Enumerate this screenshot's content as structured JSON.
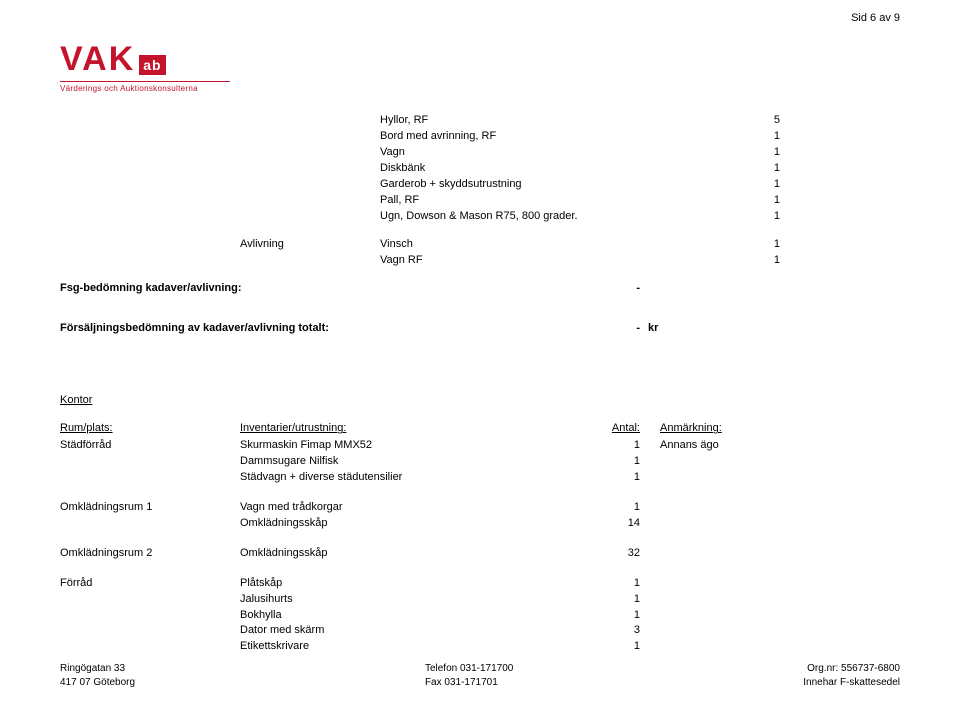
{
  "page_number": "Sid 6 av 9",
  "logo": {
    "vak": "VAK",
    "ab": "ab",
    "tagline": "Värderings och Auktionskonsulterna"
  },
  "upper_rows": [
    {
      "label": "",
      "desc": "Hyllor, RF",
      "qty": "5"
    },
    {
      "label": "",
      "desc": "Bord med avrinning, RF",
      "qty": "1"
    },
    {
      "label": "",
      "desc": "Vagn",
      "qty": "1"
    },
    {
      "label": "",
      "desc": "Diskbänk",
      "qty": "1"
    },
    {
      "label": "",
      "desc": "Garderob + skyddsutrustning",
      "qty": "1"
    },
    {
      "label": "",
      "desc": "Pall, RF",
      "qty": "1"
    },
    {
      "label": "",
      "desc": "Ugn, Dowson & Mason R75, 800 grader.",
      "qty": "1"
    },
    {
      "label": "Avlivning",
      "desc": "Vinsch",
      "qty": "1"
    },
    {
      "label": "",
      "desc": "Vagn RF",
      "qty": "1"
    }
  ],
  "fsg_line": {
    "label": "Fsg-bedömning kadaver/avlivning:",
    "qty": "-"
  },
  "sales_line": {
    "label": "Försäljningsbedömning av kadaver/avlivning totalt:",
    "qty": "-",
    "unit": "kr"
  },
  "section_title": "Kontor",
  "table_headers": {
    "room": "Rum/plats:",
    "item": "Inventarier/utrustning:",
    "qty": "Antal:",
    "note": "Anmärkning:"
  },
  "groups": [
    {
      "room": "Städförråd",
      "rows": [
        {
          "item": "Skurmaskin Fimap MMX52",
          "qty": "1",
          "note": "Annans ägo"
        },
        {
          "item": "Dammsugare Nilfisk",
          "qty": "1",
          "note": ""
        },
        {
          "item": "Städvagn + diverse städutensilier",
          "qty": "1",
          "note": ""
        }
      ]
    },
    {
      "room": "Omklädningsrum 1",
      "rows": [
        {
          "item": "Vagn med trådkorgar",
          "qty": "1",
          "note": ""
        },
        {
          "item": "Omklädningsskåp",
          "qty": "14",
          "note": ""
        }
      ]
    },
    {
      "room": "Omklädningsrum 2",
      "rows": [
        {
          "item": "Omklädningsskåp",
          "qty": "32",
          "note": ""
        }
      ]
    },
    {
      "room": "Förråd",
      "rows": [
        {
          "item": "Plåtskåp",
          "qty": "1",
          "note": ""
        },
        {
          "item": "Jalusihurts",
          "qty": "1",
          "note": ""
        },
        {
          "item": "Bokhylla",
          "qty": "1",
          "note": ""
        },
        {
          "item": "Dator med skärm",
          "qty": "3",
          "note": ""
        },
        {
          "item": "Etikettskrivare",
          "qty": "1",
          "note": ""
        }
      ]
    }
  ],
  "footer": {
    "left": {
      "l1": "Ringögatan 33",
      "l2": "417 07 Göteborg"
    },
    "mid": {
      "l1": "Telefon 031-171700",
      "l2": "Fax 031-171701"
    },
    "right": {
      "l1": "Org.nr: 556737-6800",
      "l2": "Innehar F-skattesedel"
    }
  }
}
